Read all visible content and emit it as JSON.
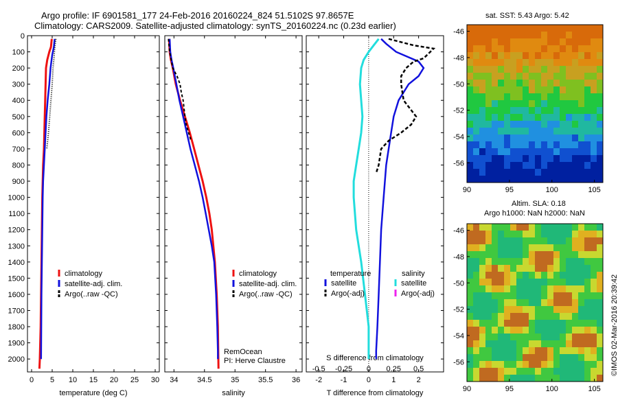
{
  "header": {
    "title_line1": "Argo profile: IF 6901581_177 24-Feb-2016 20160224_824 51.5102S 97.8657E",
    "title_line2": "Climatology: CARS2009. Satellite-adjusted climatology: synTS_20160224.nc (0.23d earlier)"
  },
  "panels": {
    "sst_title": "sat. SST: 5.43 Argo: 5.42",
    "sla_title_line1": "Altim. SLA: 0.18",
    "sla_title_line2": "Argo h1000: NaN h2000: NaN",
    "credit": "©IMOS 02-Mar-2016 20:39:42",
    "remocean_line1": "RemOcean",
    "remocean_line2": "PI: Herve Claustre"
  },
  "legends": {
    "temp": [
      "climatology",
      "satellite-adj. clim.",
      "Argo(..raw -QC)"
    ],
    "sal": [
      "climatology",
      "satellite-adj. clim.",
      "Argo(..raw -QC)"
    ],
    "diff_temperature_header": "temperature",
    "diff_salinity_header": "salinity",
    "diff_temp_items": [
      "satellite",
      "Argo(-adj)"
    ],
    "diff_sal_items": [
      "satellite",
      "Argo(-adj)"
    ]
  },
  "colors": {
    "climatology": "#ee1111",
    "satellite": "#1111dd",
    "argo": "#000000",
    "s_satellite": "#22dddd",
    "s_argo": "#ee22ee"
  },
  "chart_data": [
    {
      "type": "line",
      "xlabel": "temperature (deg C)",
      "ylabel": "",
      "xlim": [
        -1,
        31
      ],
      "ylim": [
        2080,
        0
      ],
      "xticks": [
        "0",
        "5",
        "10",
        "15",
        "20",
        "25",
        "30"
      ],
      "yticks": [
        "0",
        "100",
        "200",
        "300",
        "400",
        "500",
        "600",
        "700",
        "800",
        "900",
        "1000",
        "1100",
        "1200",
        "1300",
        "1400",
        "1500",
        "1600",
        "1700",
        "1800",
        "1900",
        "2000"
      ],
      "series": [
        {
          "name": "climatology",
          "x": [
            4.9,
            4.7,
            4.3,
            3.8,
            3.5,
            3.4,
            3.3,
            3.2,
            3.1,
            3.0,
            2.8,
            2.7,
            2.6,
            2.5,
            2.4,
            2.3,
            2.2,
            2.1,
            2.0,
            1.9
          ],
          "y": [
            20,
            70,
            100,
            150,
            200,
            300,
            400,
            500,
            600,
            700,
            800,
            900,
            1000,
            1200,
            1400,
            1600,
            1800,
            1900,
            2000,
            2060
          ]
        },
        {
          "name": "satellite-adj. clim.",
          "x": [
            5.6,
            5.4,
            5.0,
            4.6,
            4.3,
            3.9,
            3.6,
            3.4,
            3.2,
            3.0,
            2.8,
            2.7,
            2.6,
            2.5,
            2.4,
            2.3
          ],
          "y": [
            20,
            70,
            120,
            200,
            300,
            400,
            500,
            600,
            700,
            800,
            900,
            1000,
            1200,
            1400,
            1600,
            2000
          ]
        },
        {
          "name": "Argo(..raw -QC)",
          "x": [
            5.9,
            5.6,
            5.4,
            5.2,
            5.0,
            4.7,
            4.4,
            4.1,
            3.9,
            3.7
          ],
          "y": [
            20,
            80,
            150,
            200,
            300,
            400,
            500,
            600,
            650,
            700
          ]
        }
      ]
    },
    {
      "type": "line",
      "xlabel": "salinity",
      "ylabel": "",
      "xlim": [
        33.85,
        36.1
      ],
      "ylim": [
        2080,
        0
      ],
      "xticks": [
        "34",
        "34.5",
        "35",
        "35.5",
        "36"
      ],
      "series": [
        {
          "name": "climatology",
          "x": [
            33.92,
            33.93,
            33.95,
            33.98,
            34.03,
            34.1,
            34.18,
            34.26,
            34.33,
            34.4,
            34.47,
            34.53,
            34.58,
            34.62,
            34.67,
            34.7,
            34.72,
            34.73
          ],
          "y": [
            20,
            100,
            150,
            200,
            300,
            400,
            500,
            600,
            700,
            800,
            900,
            1000,
            1100,
            1200,
            1400,
            1600,
            1800,
            2060
          ]
        },
        {
          "name": "satellite-adj. clim.",
          "x": [
            33.93,
            33.94,
            33.96,
            33.99,
            34.04,
            34.09,
            34.15,
            34.21,
            34.27,
            34.34,
            34.41,
            34.47,
            34.52,
            34.57,
            34.62,
            34.66,
            34.69,
            34.71,
            34.72,
            34.72
          ],
          "y": [
            20,
            100,
            150,
            200,
            300,
            400,
            500,
            600,
            700,
            800,
            900,
            1000,
            1100,
            1200,
            1300,
            1400,
            1600,
            1800,
            1950,
            2000
          ]
        },
        {
          "name": "Argo(..raw -QC)",
          "x": [
            33.91,
            33.93,
            33.98,
            34.05,
            34.1,
            34.12,
            34.15,
            34.18,
            34.2,
            34.24,
            34.28
          ],
          "y": [
            20,
            100,
            200,
            250,
            300,
            350,
            400,
            500,
            550,
            600,
            650
          ]
        }
      ]
    },
    {
      "type": "line",
      "xlabel": "T difference from climatology",
      "ylabel": "",
      "top_xlabel": "S difference from climatology",
      "xlim": [
        -2.5,
        3
      ],
      "ylim": [
        2080,
        0
      ],
      "xticks": [
        "-2",
        "-1",
        "0",
        "1",
        "2"
      ],
      "top_xticks": [
        "-0.5",
        "-0.25",
        "0",
        "0.25",
        "0.5"
      ],
      "series": [
        {
          "name": "temperature satellite",
          "x": [
            0.5,
            0.7,
            1.1,
            2.0,
            2.2,
            2.0,
            1.6,
            1.4,
            1.2,
            1.0,
            0.9,
            0.8,
            0.7,
            0.6,
            0.5,
            0.45,
            0.4,
            0.35,
            0.3,
            0.3
          ],
          "y": [
            20,
            50,
            100,
            160,
            200,
            250,
            300,
            350,
            400,
            500,
            600,
            700,
            800,
            1000,
            1200,
            1400,
            1600,
            1800,
            1950,
            2000
          ]
        },
        {
          "name": "temperature Argo(-adj)",
          "x": [
            0.8,
            1.8,
            2.6,
            2.2,
            1.8,
            1.5,
            1.3,
            1.3,
            1.4,
            1.9,
            1.7,
            1.3,
            0.8,
            0.5,
            0.4,
            0.3
          ],
          "y": [
            20,
            60,
            80,
            140,
            160,
            200,
            250,
            300,
            400,
            500,
            550,
            600,
            650,
            700,
            800,
            850
          ]
        },
        {
          "name": "salinity satellite",
          "x": [
            0.4,
            0.2,
            0.0,
            -0.2,
            -0.3,
            -0.35,
            -0.3,
            -0.25,
            -0.3,
            -0.4,
            -0.5,
            -0.6,
            -0.6,
            -0.5,
            -0.3,
            -0.15,
            0.0,
            0.0
          ],
          "y": [
            20,
            60,
            100,
            150,
            200,
            300,
            400,
            500,
            600,
            700,
            800,
            900,
            1000,
            1200,
            1400,
            1600,
            1800,
            2000
          ]
        }
      ]
    },
    {
      "type": "heatmap",
      "title": "sat. SST: 5.43 Argo: 5.42",
      "xlim": [
        90,
        106
      ],
      "ylim": [
        -57.5,
        -45.5
      ],
      "xticks": [
        "90",
        "95",
        "100",
        "105"
      ],
      "yticks": [
        "-46",
        "-48",
        "-50",
        "-52",
        "-54",
        "-56"
      ]
    },
    {
      "type": "heatmap",
      "title": "Altim. SLA: 0.18",
      "xlim": [
        90,
        106
      ],
      "ylim": [
        -57.5,
        -45.5
      ],
      "xticks": [
        "90",
        "95",
        "100",
        "105"
      ],
      "yticks": [
        "-46",
        "-48",
        "-50",
        "-52",
        "-54",
        "-56"
      ]
    }
  ]
}
